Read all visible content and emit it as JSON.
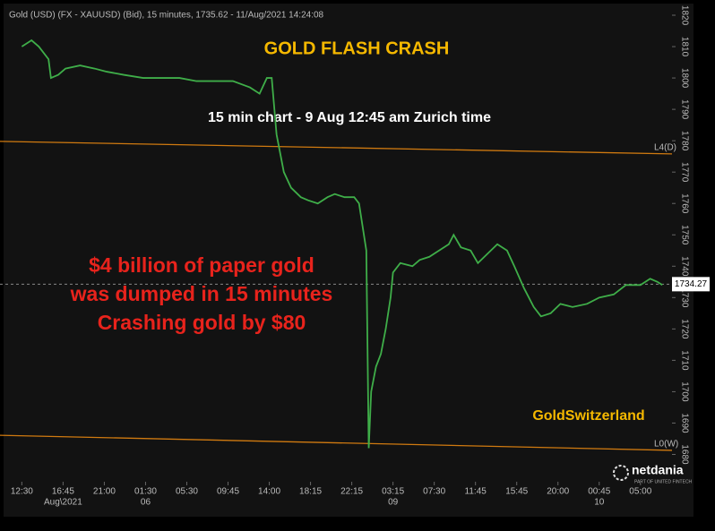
{
  "chart_data": {
    "type": "line",
    "header": "Gold (USD) (FX - XAUUSD) (Bid), 15 minutes, 1735.62 - 11/Aug/2021 14:24:08",
    "title": "GOLD FLASH CRASH",
    "subtitle": "15  min chart  - 9 Aug 12:45 am Zurich time",
    "annotation": [
      "$4 billion of paper gold",
      "was dumped in 15 minutes",
      "Crashing gold by $80"
    ],
    "brand": "GoldSwitzerland",
    "logo": "netdania",
    "logo_sub": "PART OF UNITED FINTECH",
    "last_price": {
      "value": 1734.27,
      "label": "1734.27"
    },
    "levels": [
      {
        "label": "L4(D)",
        "start": 1779.8,
        "end": 1775.8
      },
      {
        "label": "L0(W)",
        "start": 1686.1,
        "end": 1681.3
      }
    ],
    "x": [
      0,
      4,
      7,
      11,
      12,
      15,
      18,
      24,
      30,
      35,
      42,
      50,
      57,
      65,
      72,
      79,
      87,
      94,
      98,
      101,
      103,
      105,
      108,
      111,
      115,
      118,
      122,
      126,
      129,
      133,
      137,
      139,
      142,
      143,
      144,
      146,
      148,
      150,
      152,
      153,
      156,
      161,
      164,
      168,
      172,
      176,
      178,
      181,
      185,
      188,
      192,
      196,
      200,
      203,
      207,
      211,
      214,
      218,
      222,
      227,
      233,
      238,
      244,
      249,
      255,
      259,
      262,
      264
    ],
    "series": [
      {
        "name": "Gold",
        "color": "#3fae49",
        "values": [
          1810,
          1812,
          1810,
          1806,
          1800,
          1801,
          1803,
          1804,
          1803,
          1802,
          1801,
          1800,
          1800,
          1800,
          1799,
          1799,
          1799,
          1797,
          1795,
          1800,
          1800,
          1782,
          1770,
          1765,
          1762,
          1761,
          1760,
          1762,
          1763,
          1762,
          1762,
          1760,
          1745,
          1682,
          1700,
          1708,
          1712,
          1720,
          1730,
          1738,
          1741,
          1740,
          1742,
          1743,
          1745,
          1747,
          1750,
          1746,
          1745,
          1741,
          1744,
          1747,
          1745,
          1740,
          1733,
          1727,
          1724,
          1725,
          1728,
          1727,
          1728,
          1730,
          1731,
          1734,
          1734,
          1736,
          1735,
          1734
        ]
      }
    ],
    "xlim": [
      -9,
      268
    ],
    "ylim": [
      1675,
      1822
    ],
    "xticks": [
      {
        "value": 0,
        "label": "12:30"
      },
      {
        "value": 17,
        "label": "16:45",
        "sublabel": "Aug\\2021"
      },
      {
        "value": 34,
        "label": "21:00"
      },
      {
        "value": 51,
        "label": "01:30",
        "sublabel": "06"
      },
      {
        "value": 68,
        "label": "05:30"
      },
      {
        "value": 85,
        "label": "09:45"
      },
      {
        "value": 102,
        "label": "14:00"
      },
      {
        "value": 119,
        "label": "18:15"
      },
      {
        "value": 136,
        "label": "22:15"
      },
      {
        "value": 153,
        "label": "03:15",
        "sublabel": "09"
      },
      {
        "value": 170,
        "label": "07:30"
      },
      {
        "value": 187,
        "label": "11:45"
      },
      {
        "value": 204,
        "label": "15:45"
      },
      {
        "value": 221,
        "label": "20:00"
      },
      {
        "value": 238,
        "label": "00:45",
        "sublabel": "10"
      },
      {
        "value": 255,
        "label": "05:00"
      }
    ],
    "yticks": [
      1680,
      1690,
      1700,
      1710,
      1720,
      1730,
      1740,
      1750,
      1760,
      1770,
      1780,
      1790,
      1800,
      1810,
      1820
    ]
  }
}
